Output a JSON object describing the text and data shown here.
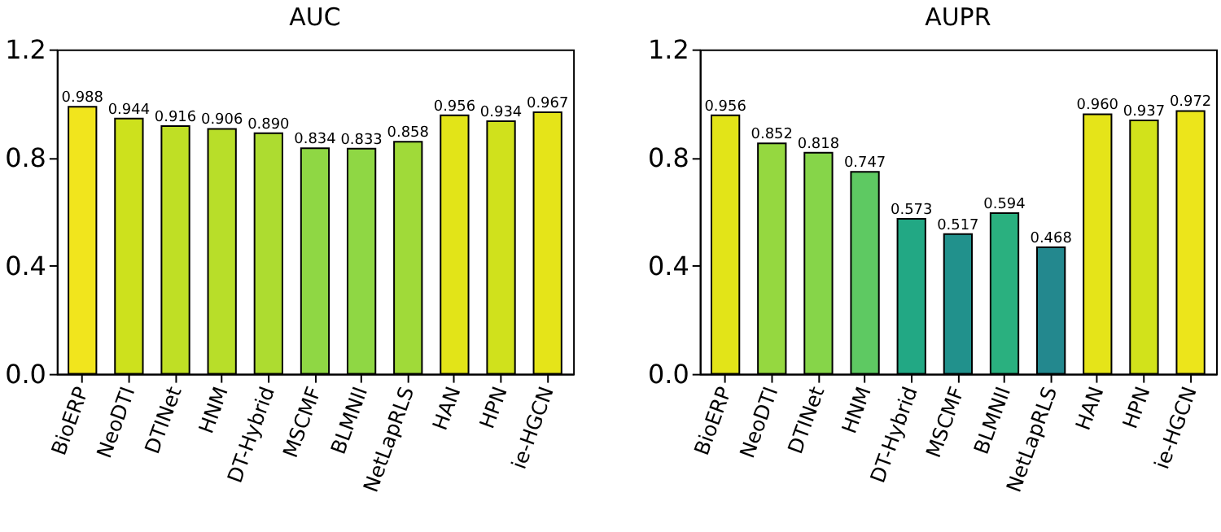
{
  "chart_data": [
    {
      "type": "bar",
      "title": "AUC",
      "categories": [
        "BioERP",
        "NeoDTI",
        "DTINet",
        "HNM",
        "DT-Hybrid",
        "MSCMF",
        "BLMNII",
        "NetLapRLS",
        "HAN",
        "HPN",
        "ie-HGCN"
      ],
      "values": [
        0.988,
        0.944,
        0.916,
        0.906,
        0.89,
        0.834,
        0.833,
        0.858,
        0.956,
        0.934,
        0.967
      ],
      "value_labels": [
        "0.988",
        "0.944",
        "0.916",
        "0.906",
        "0.890",
        "0.834",
        "0.833",
        "0.858",
        "0.956",
        "0.934",
        "0.967"
      ],
      "colors": [
        "#f1e51d",
        "#cde11d",
        "#bfdf25",
        "#b8de29",
        "#addc30",
        "#8fd744",
        "#8fd744",
        "#a0da39",
        "#e2e418",
        "#d0e11c",
        "#e5e419"
      ],
      "ylim": [
        0,
        1.2
      ],
      "yticks": [
        {
          "value": 0,
          "label": "0.0"
        },
        0.4,
        0.8,
        1.2
      ],
      "grid": false
    },
    {
      "type": "bar",
      "title": "AUPR",
      "categories": [
        "BioERP",
        "NeoDTI",
        "DTINet",
        "HNM",
        "DT-Hybrid",
        "MSCMF",
        "BLMNII",
        "NetLapRLS",
        "HAN",
        "HPN",
        "ie-HGCN"
      ],
      "values": [
        0.956,
        0.852,
        0.818,
        0.747,
        0.573,
        0.517,
        0.594,
        0.468,
        0.96,
        0.937,
        0.972
      ],
      "value_labels": [
        "0.956",
        "0.852",
        "0.818",
        "0.747",
        "0.573",
        "0.517",
        "0.594",
        "0.468",
        "0.960",
        "0.937",
        "0.972"
      ],
      "colors": [
        "#e2e418",
        "#95d840",
        "#86d549",
        "#5ec962",
        "#22a884",
        "#21918c",
        "#2ab07f",
        "#23888e",
        "#e5e419",
        "#d2e21b",
        "#ece51b"
      ],
      "ylim": [
        0,
        1.2
      ],
      "yticks": [
        {
          "value": 0,
          "label": "0.0"
        },
        0.4,
        0.8,
        1.2
      ],
      "grid": false
    }
  ]
}
